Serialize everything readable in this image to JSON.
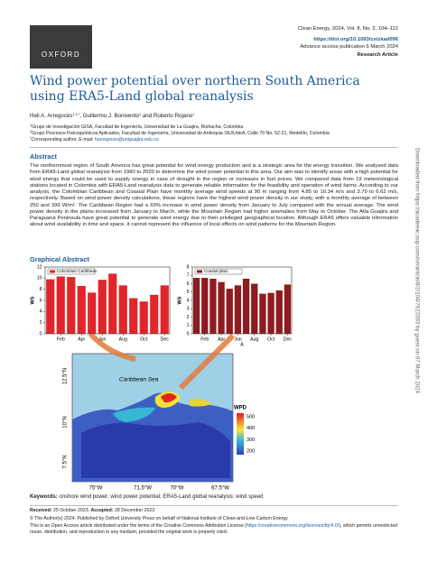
{
  "header": {
    "logo": "OXFORD",
    "journal": "Clean Energy, 2024, Vol. 8, No. 2, 104–112",
    "doi": "https://doi.org/10.1093/ce/zkad096",
    "access": "Advance access publication 6 March 2024",
    "article_type": "Research Article"
  },
  "title": "Wind power potential over northern South America using ERA5-Land global reanalysis",
  "authors": [
    {
      "text": "Heli A. Arregocés",
      "sup": "1,2,*"
    },
    {
      "text": ", Guillermo J. Bonivento",
      "sup": "1"
    },
    {
      "text": " and Roberto Rojano",
      "sup": "1"
    }
  ],
  "affiliations": [
    {
      "sup": "1",
      "text": "Grupo de Investigación GISA, Facultad de Ingeniería, Universidad de La Guajira, Riohacha, Colombia"
    },
    {
      "sup": "2",
      "text": "Grupo Procesos Fisicoquímicos Aplicados, Facultad de Ingeniería, Universidad de Antioquia SIU/UdeA, Calle 70 No. 52-21, Medellín, Colombia"
    }
  ],
  "corresponding": {
    "sup": "*",
    "text": "Corresponding author. E-mail: ",
    "email": "harregoces@uniguajira.edu.co"
  },
  "abstract": {
    "heading": "Abstract",
    "text": "The northernmost region of South America has great potential for wind energy production and is a strategic area for the energy transition. We analysed data from ERA5-Land global reanalysis from 1980 to 2020 to determine the wind power potential in this area. Our aim was to identify areas with a high potential for wind energy that could be used to supply energy in case of drought in the region or increases in fuel prices. We compared data from 19 meteorological stations located in Colombia with ERA5-Land reanalysis data to generate reliable information for the feasibility and operation of wind farms. According to our analysis, the Colombian Caribbean and Coastal Plain have monthly average wind speeds at 90 m ranging from 4.85 to 10.34 m/s and 3.79 to 6.62 m/s, respectively. Based on wind power density calculations, these regions have the highest wind power density in our study, with a monthly average of between 250 and 399 W/m². The Caribbean Region had a 69% increase in wind power density from January to July compared with the annual average. The wind power density in the plains increased from January to March, while the Mountain Region had higher anomalies from May to October. The Alta Guajira and Paraguaná Peninsula have great potential to generate wind energy due to their privileged geographical location. Although ERA5 offers valuable information about wind availability in time and space, it cannot represent the influence of local effects on wind patterns for the Mountain Region."
  },
  "graphical_abstract": {
    "heading": "Graphical Abstract",
    "charts": [
      {
        "type": "bar",
        "legend": "Colombian Caribbean",
        "ylabel": "WS",
        "color": "#e0262b",
        "categories": [
          null,
          "Feb",
          null,
          "Apr",
          null,
          "Jun",
          null,
          "Aug",
          null,
          "Oct",
          null,
          "Dec"
        ],
        "values": [
          9.8,
          10.3,
          10.2,
          8.6,
          7.4,
          9.7,
          10.8,
          8.7,
          6.4,
          5.8,
          7.0,
          8.7
        ],
        "ylim": [
          0,
          12
        ],
        "yticks": [
          0,
          2,
          4,
          6,
          8,
          10,
          12
        ]
      },
      {
        "type": "bar",
        "legend": "Coastal plain",
        "ylabel": "WS",
        "annotation": "A",
        "color": "#8e1b1f",
        "categories": [
          null,
          "Feb",
          null,
          "Apr",
          null,
          "Jun",
          null,
          "Aug",
          null,
          "Oct",
          null,
          "Dec"
        ],
        "values": [
          6.7,
          6.7,
          6.6,
          6.2,
          5.4,
          5.8,
          6.6,
          6.0,
          4.8,
          4.9,
          5.2,
          5.9
        ],
        "ylim": [
          0,
          8
        ],
        "yticks": [
          0,
          1,
          2,
          3,
          4,
          5,
          6,
          7,
          8
        ]
      }
    ],
    "map": {
      "sea_label": "Caribbean Sea",
      "lat_labels": [
        "12.5°N",
        "10°N",
        "7.5°N"
      ],
      "lon_labels": [
        "75°W",
        "71.5°W",
        "70°W",
        "67.5°W"
      ],
      "colorbar_title": "WPD",
      "colorbar_labels": [
        "500",
        "400",
        "300",
        "200"
      ]
    }
  },
  "keywords": {
    "label": "Keywords:",
    "text": "onshore wind power; wind power potential; ERA5-Land global reanalysis; wind speed"
  },
  "received": {
    "label1": "Received:",
    "date1": " 25 October 2023. ",
    "label2": "Accepted:",
    "date2": " 28 December 2023"
  },
  "copyright": "© The Author(s) 2024. Published by Oxford University Press on behalf of National Institute of Clean-and-Low-Carbon Energy",
  "license": {
    "before": "This is an Open Access article distributed under the terms of the Creative Commons Attribution License (",
    "link": "https://creativecommons.org/licenses/by/4.0/",
    "after": "), which permits unrestricted reuse, distribution, and reproduction in any medium, provided the original work is properly cited."
  },
  "side_note": "Downloaded from https://academic.oup.com/ce/article/8/2/104/7623393 by guest on 07 March 2024"
}
